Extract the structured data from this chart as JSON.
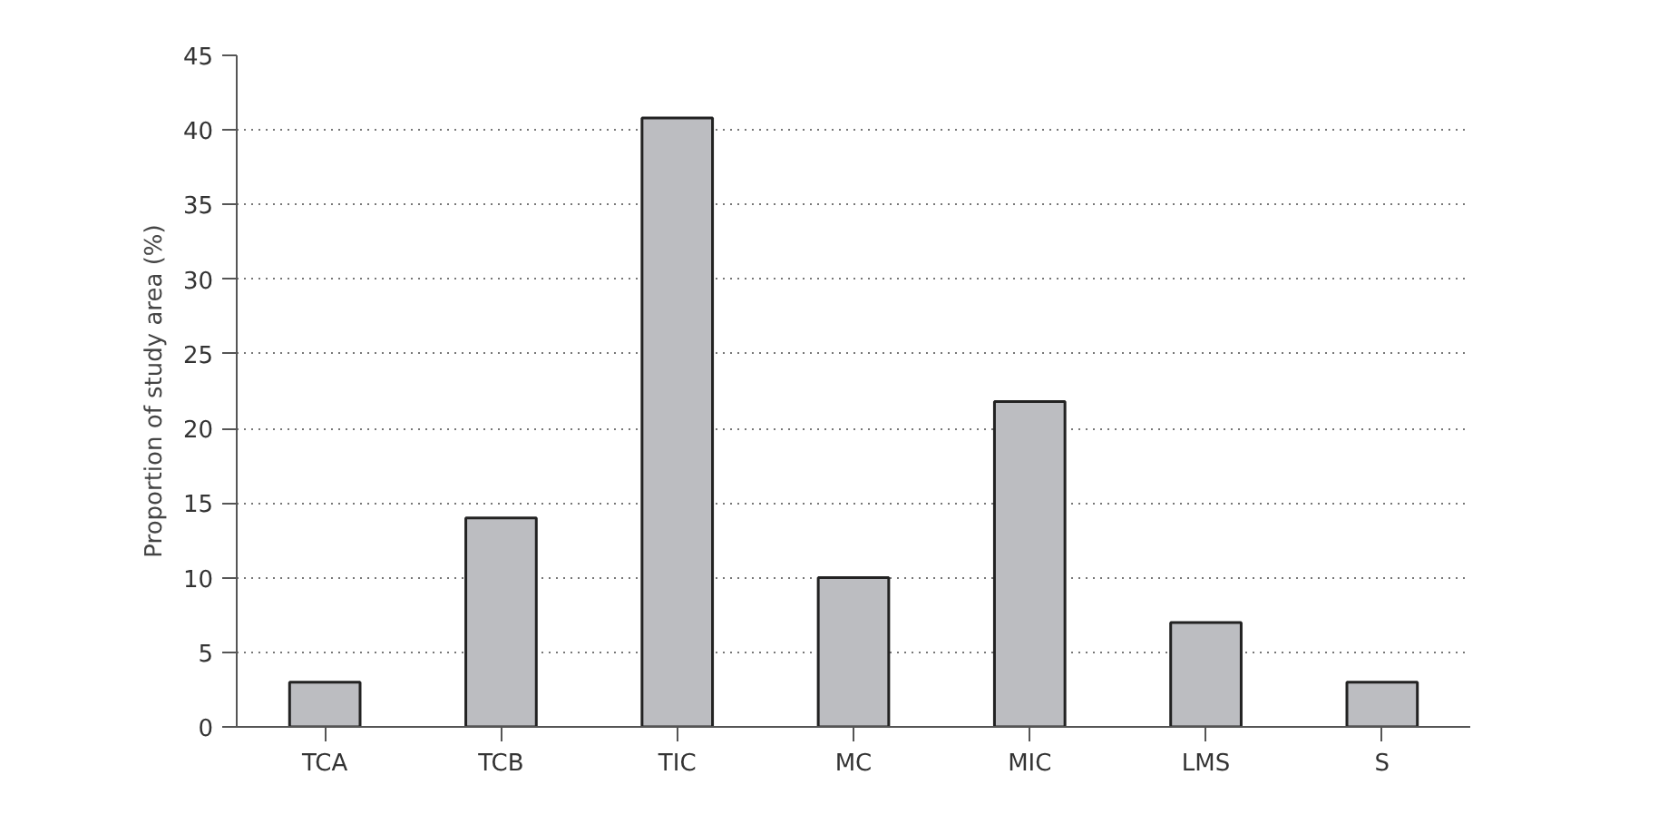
{
  "chart_data": {
    "type": "bar",
    "ylabel": "Proportion of study area (%)",
    "categories": [
      "TCA",
      "TCB",
      "TIC",
      "MC",
      "MIC",
      "LMS",
      "S"
    ],
    "values": [
      3,
      14,
      40.8,
      10,
      21.8,
      7,
      3
    ],
    "color": "#bcbdc1",
    "ylim": [
      0,
      45
    ],
    "yticks": [
      0,
      5,
      10,
      15,
      20,
      25,
      30,
      35,
      40,
      45
    ],
    "grid": "y"
  }
}
